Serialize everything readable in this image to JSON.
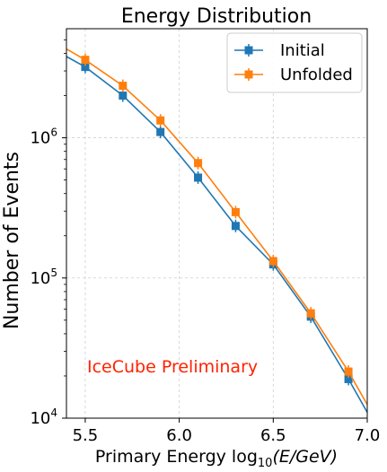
{
  "chart_data": {
    "type": "line",
    "title": "Energy Distribution",
    "xlabel_prefix": "Primary Energy log",
    "xlabel_sub": "10",
    "xlabel_suffix": "(E/GeV)",
    "ylabel": "Number of Events",
    "xlim": [
      5.4,
      7.0
    ],
    "ylim": [
      10000,
      6000000
    ],
    "yscale": "log",
    "grid": true,
    "legend_position": "top-right",
    "x_ticks": [
      5.5,
      6.0,
      6.5,
      7.0
    ],
    "x_tick_labels": [
      "5.5",
      "6.0",
      "6.5",
      "7.0"
    ],
    "y_ticks": [
      10000,
      100000,
      1000000
    ],
    "y_tick_labels": [
      {
        "base": "10",
        "exp": "4"
      },
      {
        "base": "10",
        "exp": "5"
      },
      {
        "base": "10",
        "exp": "6"
      }
    ],
    "x": [
      5.5,
      5.7,
      5.9,
      6.1,
      6.3,
      6.5,
      6.7,
      6.9
    ],
    "series": [
      {
        "name": "Initial",
        "color": "#1f77b4",
        "values": [
          3200000,
          2000000,
          1100000,
          520000,
          235000,
          125000,
          53000,
          19000
        ],
        "line_ends": [
          [
            5.4,
            3800000
          ],
          [
            7.0,
            11000
          ]
        ]
      },
      {
        "name": "Unfolded",
        "color": "#ff7f0e",
        "values": [
          3600000,
          2350000,
          1330000,
          660000,
          295000,
          132000,
          56000,
          21500
        ],
        "line_ends": [
          [
            5.4,
            4300000
          ],
          [
            7.0,
            12500
          ]
        ]
      }
    ],
    "annotation": {
      "text": "IceCube Preliminary",
      "color": "#ff2200"
    }
  }
}
